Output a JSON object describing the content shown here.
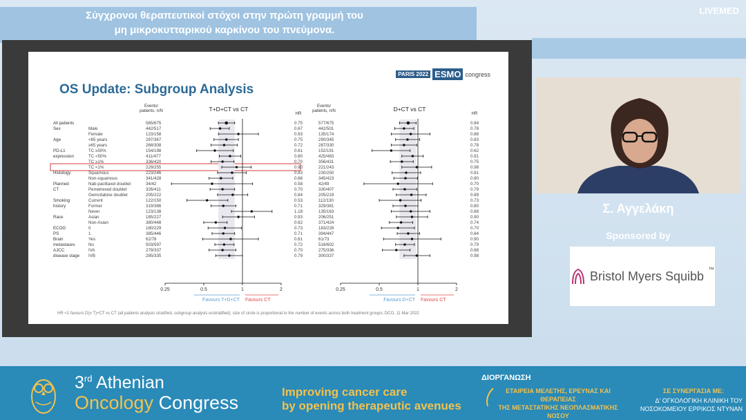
{
  "header": {
    "title_line1": "Σύγχρονοι θεραπευτικοί στόχοι στην πρώτη γραμμή του",
    "title_line2": "μη μικροκυτταρικού καρκίνου του πνεύμονα.",
    "brand": "LIVEMED"
  },
  "slide": {
    "title": "OS Update: Subgroup Analysis",
    "badge_city": "PARIS 2022",
    "badge_name": "ESMO",
    "badge_suffix": "congress",
    "footnote": "HR <1 favours D(± T)+CT vs CT (all patients analysis stratified, subgroup analysis unstratified); size of circle is proportional to the number of events across both treatment groups; DCO, 11 Mar 2022"
  },
  "chart_data": [
    {
      "type": "scatter",
      "title": "T+D+CT vs CT",
      "col_header_events": "Events/ patients, n/N",
      "col_header_hr": "HR",
      "xscale": "log",
      "xticks": [
        "0.25",
        "0.5",
        "1",
        "2"
      ],
      "xlim": [
        0.25,
        2
      ],
      "favours_left": "Favours T+D+CT",
      "favours_right": "Favours CT",
      "rows": [
        {
          "group": "All patients",
          "sub": "",
          "events": "565/675",
          "hr": 0.75,
          "lo": 0.65,
          "hi": 0.87
        },
        {
          "group": "Sex",
          "sub": "Male",
          "events": "442/517",
          "hr": 0.67,
          "lo": 0.56,
          "hi": 0.79
        },
        {
          "group": "",
          "sub": "Female",
          "events": "123/158",
          "hr": 0.93,
          "lo": 0.65,
          "hi": 1.33
        },
        {
          "group": "Age",
          "sub": "<65 years",
          "events": "297/367",
          "hr": 0.75,
          "lo": 0.6,
          "hi": 0.93
        },
        {
          "group": "",
          "sub": "≥65 years",
          "events": "268/308",
          "hr": 0.72,
          "lo": 0.57,
          "hi": 0.91
        },
        {
          "group": "PD-L1 expression",
          "sub": "TC ≥50%",
          "events": "154/198",
          "hr": 0.61,
          "lo": 0.44,
          "hi": 0.85
        },
        {
          "group": "",
          "sub": "TC <50%",
          "events": "411/477",
          "hr": 0.8,
          "lo": 0.66,
          "hi": 0.97
        },
        {
          "group": "",
          "sub": "TC ≥1%",
          "events": "336/420",
          "hr": 0.7,
          "lo": 0.57,
          "hi": 0.86
        },
        {
          "group": "",
          "sub": "TC <1%",
          "events": "229/255",
          "hr": 0.9,
          "lo": 0.69,
          "hi": 1.17
        },
        {
          "group": "Histology",
          "sub": "Squamous",
          "events": "223/246",
          "hr": 0.83,
          "lo": 0.64,
          "hi": 1.07
        },
        {
          "group": "",
          "sub": "Non-squamous",
          "events": "341/428",
          "hr": 0.68,
          "lo": 0.55,
          "hi": 0.84
        },
        {
          "group": "Planned CT",
          "sub": "Nab-paclitaxel doublet",
          "events": "34/42",
          "hr": 0.58,
          "lo": 0.28,
          "hi": 1.2
        },
        {
          "group": "",
          "sub": "Pemetrexed doublet",
          "events": "326/411",
          "hr": 0.7,
          "lo": 0.56,
          "hi": 0.87
        },
        {
          "group": "",
          "sub": "Gemcitabine doublet",
          "events": "205/222",
          "hr": 0.84,
          "lo": 0.64,
          "hi": 1.1
        },
        {
          "group": "Smoking history",
          "sub": "Current",
          "events": "122/150",
          "hr": 0.53,
          "lo": 0.37,
          "hi": 0.77
        },
        {
          "group": "",
          "sub": "Former",
          "events": "319/386",
          "hr": 0.71,
          "lo": 0.57,
          "hi": 0.89
        },
        {
          "group": "",
          "sub": "Never",
          "events": "123/138",
          "hr": 1.18,
          "lo": 0.82,
          "hi": 1.7
        },
        {
          "group": "Race",
          "sub": "Asian",
          "events": "185/227",
          "hr": 0.93,
          "lo": 0.7,
          "hi": 1.24
        },
        {
          "group": "",
          "sub": "Non-Asian",
          "events": "380/448",
          "hr": 0.62,
          "lo": 0.5,
          "hi": 0.76
        },
        {
          "group": "ECOG PS",
          "sub": "0",
          "events": "180/229",
          "hr": 0.73,
          "lo": 0.54,
          "hi": 0.98
        },
        {
          "group": "",
          "sub": "1",
          "events": "385/446",
          "hr": 0.71,
          "lo": 0.58,
          "hi": 0.87
        },
        {
          "group": "Brain metastases",
          "sub": "Yes",
          "events": "62/78",
          "hr": 0.81,
          "lo": 0.49,
          "hi": 1.33
        },
        {
          "group": "",
          "sub": "No",
          "events": "503/597",
          "hr": 0.72,
          "lo": 0.61,
          "hi": 0.86
        },
        {
          "group": "AJCC disease stage",
          "sub": "IVA",
          "events": "279/337",
          "hr": 0.7,
          "lo": 0.55,
          "hi": 0.89
        },
        {
          "group": "",
          "sub": "IVB",
          "events": "285/335",
          "hr": 0.79,
          "lo": 0.62,
          "hi": 1.0
        }
      ]
    },
    {
      "type": "scatter",
      "title": "D+CT vs CT",
      "col_header_events": "Events/ patients, n/N",
      "col_header_hr": "HR",
      "xscale": "log",
      "xticks": [
        "0.25",
        "0.5",
        "1",
        "2"
      ],
      "xlim": [
        0.25,
        2
      ],
      "favours_left": "Favours D+CT",
      "favours_right": "Favours CT",
      "rows": [
        {
          "events": "577/675",
          "hr": 0.84,
          "lo": 0.72,
          "hi": 0.97
        },
        {
          "events": "442/501",
          "hr": 0.78,
          "lo": 0.66,
          "hi": 0.93
        },
        {
          "events": "135/174",
          "hr": 0.88,
          "lo": 0.62,
          "hi": 1.24
        },
        {
          "events": "290/345",
          "hr": 0.83,
          "lo": 0.67,
          "hi": 1.03
        },
        {
          "events": "287/330",
          "hr": 0.78,
          "lo": 0.62,
          "hi": 0.98
        },
        {
          "events": "152/191",
          "hr": 0.62,
          "lo": 0.44,
          "hi": 0.87
        },
        {
          "events": "425/483",
          "hr": 0.91,
          "lo": 0.75,
          "hi": 1.1
        },
        {
          "events": "356/431",
          "hr": 0.75,
          "lo": 0.61,
          "hi": 0.92
        },
        {
          "events": "221/243",
          "hr": 0.98,
          "lo": 0.75,
          "hi": 1.28
        },
        {
          "events": "230/250",
          "hr": 0.81,
          "lo": 0.63,
          "hi": 1.05
        },
        {
          "events": "345/423",
          "hr": 0.8,
          "lo": 0.65,
          "hi": 0.99
        },
        {
          "events": "42/49",
          "hr": 0.7,
          "lo": 0.38,
          "hi": 1.3
        },
        {
          "events": "330/407",
          "hr": 0.79,
          "lo": 0.64,
          "hi": 0.98
        },
        {
          "events": "205/219",
          "hr": 0.89,
          "lo": 0.68,
          "hi": 1.16
        },
        {
          "events": "112/130",
          "hr": 0.73,
          "lo": 0.5,
          "hi": 1.06
        },
        {
          "events": "329/381",
          "hr": 0.8,
          "lo": 0.64,
          "hi": 1.0
        },
        {
          "events": "135/163",
          "hr": 0.88,
          "lo": 0.62,
          "hi": 1.24
        },
        {
          "events": "206/251",
          "hr": 0.9,
          "lo": 0.68,
          "hi": 1.19
        },
        {
          "events": "371/424",
          "hr": 0.74,
          "lo": 0.6,
          "hi": 0.91
        },
        {
          "events": "183/228",
          "hr": 0.7,
          "lo": 0.52,
          "hi": 0.94
        },
        {
          "events": "394/447",
          "hr": 0.84,
          "lo": 0.69,
          "hi": 1.03
        },
        {
          "events": "61/73",
          "hr": 0.9,
          "lo": 0.54,
          "hi": 1.51
        },
        {
          "events": "516/602",
          "hr": 0.79,
          "lo": 0.67,
          "hi": 0.94
        },
        {
          "events": "275/336",
          "hr": 0.68,
          "lo": 0.53,
          "hi": 0.87
        },
        {
          "events": "300/337",
          "hr": 0.98,
          "lo": 0.78,
          "hi": 1.24
        }
      ]
    }
  ],
  "speaker": {
    "name": "Σ. Αγγελάκη"
  },
  "sponsor": {
    "label": "Sponsored by",
    "name": "Bristol Myers Squibb",
    "tm": "™"
  },
  "footer": {
    "ordinal": "3",
    "ordinal_suffix": "rd",
    "city": "Athenian",
    "name_word1": "Oncology",
    "name_word2": "Congress",
    "tagline_1": "Improving cancer care",
    "tagline_2": "by opening therapeutic avenues",
    "org_label": "ΔΙΟΡΓΑΝΩΣΗ",
    "org_line1": "ΕΤΑΙΡΕΙΑ ΜΕΛΕΤΗΣ, ΕΡΕΥΝΑΣ ΚΑΙ ΘΕΡΑΠΕΙΑΣ",
    "org_line2": "ΤΗΣ ΜΕΤΑΣΤΑΤΙΚΗΣ ΝΕΟΠΛΑΣΜΑΤΙΚΗΣ ΝΟΣΟΥ",
    "partner_label": "ΣΕ ΣΥΝΕΡΓΑΣΙΑ ΜΕ:",
    "partner_line1": "Δ' ΟΓΚΟΛΟΓΙΚΗ ΚΛΙΝΙΚΗ ΤΟΥ",
    "partner_line2": "ΝΟΣΟΚΟΜΕΙΟΥ ΕΡΡΙΚΟΣ ΝΤΥΝΑΝ"
  },
  "colors": {
    "title_blue": "#2c6a96",
    "favours_left": "#5b9bd5",
    "favours_right": "#e04848",
    "highlight_box": "#d63b3b",
    "footer_bg": "#2a8ab8",
    "footer_gold": "#f2c24e"
  }
}
